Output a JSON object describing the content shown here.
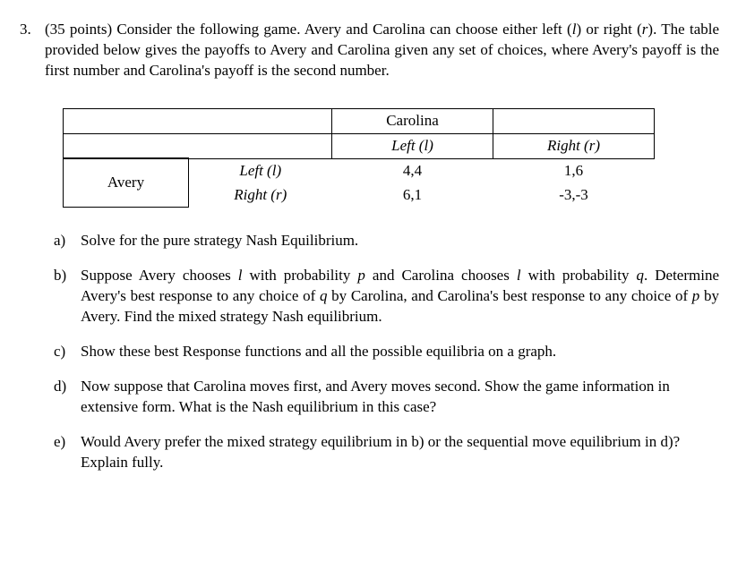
{
  "problem": {
    "number": "3.",
    "points_text": "(35 points) Consider the following game. Avery and Carolina can choose either left (",
    "l_sym": "l",
    "mid1": ") or right (",
    "r_sym": "r",
    "stem_tail": "). The table provided below gives the payoffs to Avery and Carolina given any set of choices, where Avery's payoff is the first number and Carolina's payoff is the second number."
  },
  "table": {
    "col_player": "Carolina",
    "row_player": "Avery",
    "left_label_pre": "Left (",
    "left_label_sym": "l",
    "left_label_post": ")",
    "right_label_pre": "Right (",
    "right_label_sym": "r",
    "right_label_post": ")",
    "payoffs": {
      "ll": "4,4",
      "lr": "1,6",
      "rl": "6,1",
      "rr": "-3,-3"
    }
  },
  "parts": {
    "a": {
      "label": "a)",
      "text": "Solve for the pure strategy Nash Equilibrium."
    },
    "b": {
      "label": "b)",
      "pre": "Suppose Avery chooses ",
      "l": "l",
      "m1": " with probability ",
      "p": "p",
      "m2": " and Carolina chooses ",
      "l2": "l",
      "m3": " with probability ",
      "q": "q",
      "m4": ". Determine Avery's best response to any choice of ",
      "q2": "q",
      "m5": " by Carolina, and Carolina's best response to any choice of ",
      "p2": "p",
      "m6": " by Avery. Find the mixed strategy Nash equilibrium."
    },
    "c": {
      "label": "c)",
      "text": "Show these best Response functions and all the possible equilibria on a graph."
    },
    "d": {
      "label": "d)",
      "text": "Now suppose that Carolina moves first, and Avery moves second.  Show the game information in extensive form.  What is the Nash equilibrium in this case?"
    },
    "e": {
      "label": "e)",
      "text": "Would Avery prefer the mixed strategy equilibrium in b) or the sequential move equilibrium in d)?  Explain fully."
    }
  }
}
